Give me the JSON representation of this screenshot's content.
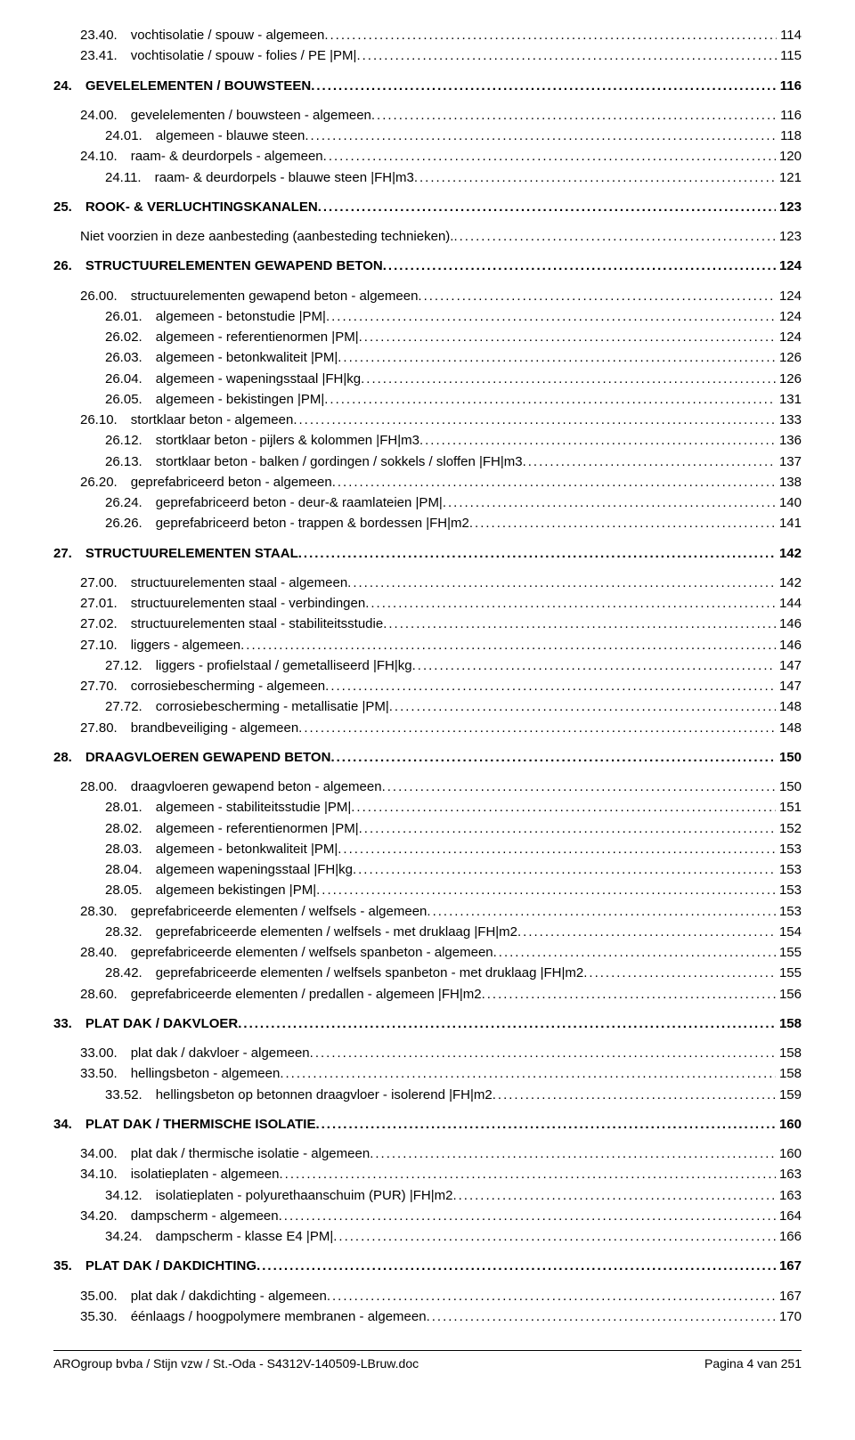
{
  "toc": [
    {
      "ind": 1,
      "bold": false,
      "num": "23.40.",
      "text": "vochtisolatie / spouw - algemeen",
      "page": "114",
      "gapBefore": false
    },
    {
      "ind": 1,
      "bold": false,
      "num": "23.41.",
      "text": "vochtisolatie / spouw - folies / PE |PM|",
      "page": "115",
      "gapBefore": false
    },
    {
      "ind": 0,
      "bold": true,
      "num": "24.",
      "text": "GEVELELEMENTEN / BOUWSTEEN",
      "page": "116",
      "gapBefore": true
    },
    {
      "ind": 1,
      "bold": false,
      "num": "24.00.",
      "text": "gevelelementen / bouwsteen - algemeen",
      "page": "116",
      "gapBefore": true
    },
    {
      "ind": 2,
      "bold": false,
      "num": "24.01.",
      "text": "algemeen - blauwe steen",
      "page": "118",
      "gapBefore": false
    },
    {
      "ind": 1,
      "bold": false,
      "num": "24.10.",
      "text": "raam- & deurdorpels - algemeen",
      "page": "120",
      "gapBefore": false
    },
    {
      "ind": 2,
      "bold": false,
      "num": "24.11.",
      "text": "raam- & deurdorpels - blauwe steen |FH|m3",
      "page": "121",
      "gapBefore": false
    },
    {
      "ind": 0,
      "bold": true,
      "num": "25.",
      "text": "ROOK- & VERLUCHTINGSKANALEN",
      "page": "123",
      "gapBefore": true
    },
    {
      "ind": 1,
      "bold": false,
      "num": "",
      "text": "Niet voorzien in deze aanbesteding (aanbesteding technieken).",
      "page": "123",
      "gapBefore": true
    },
    {
      "ind": 0,
      "bold": true,
      "num": "26.",
      "text": "STRUCTUURELEMENTEN GEWAPEND BETON",
      "page": "124",
      "gapBefore": true
    },
    {
      "ind": 1,
      "bold": false,
      "num": "26.00.",
      "text": "structuurelementen gewapend beton - algemeen",
      "page": "124",
      "gapBefore": true
    },
    {
      "ind": 2,
      "bold": false,
      "num": "26.01.",
      "text": "algemeen - betonstudie |PM|",
      "page": "124",
      "gapBefore": false
    },
    {
      "ind": 2,
      "bold": false,
      "num": "26.02.",
      "text": "algemeen - referentienormen |PM|",
      "page": "124",
      "gapBefore": false
    },
    {
      "ind": 2,
      "bold": false,
      "num": "26.03.",
      "text": "algemeen - betonkwaliteit |PM|",
      "page": "126",
      "gapBefore": false
    },
    {
      "ind": 2,
      "bold": false,
      "num": "26.04.",
      "text": "algemeen - wapeningsstaal |FH|kg",
      "page": "126",
      "gapBefore": false
    },
    {
      "ind": 2,
      "bold": false,
      "num": "26.05.",
      "text": "algemeen - bekistingen |PM|",
      "page": "131",
      "gapBefore": false
    },
    {
      "ind": 1,
      "bold": false,
      "num": "26.10.",
      "text": "stortklaar beton - algemeen",
      "page": "133",
      "gapBefore": false
    },
    {
      "ind": 2,
      "bold": false,
      "num": "26.12.",
      "text": "stortklaar beton - pijlers & kolommen |FH|m3",
      "page": "136",
      "gapBefore": false
    },
    {
      "ind": 2,
      "bold": false,
      "num": "26.13.",
      "text": "stortklaar beton - balken / gordingen / sokkels / sloffen |FH|m3",
      "page": "137",
      "gapBefore": false
    },
    {
      "ind": 1,
      "bold": false,
      "num": "26.20.",
      "text": "geprefabriceerd beton - algemeen",
      "page": "138",
      "gapBefore": false
    },
    {
      "ind": 2,
      "bold": false,
      "num": "26.24.",
      "text": "geprefabriceerd beton - deur-& raamlateien |PM|",
      "page": "140",
      "gapBefore": false
    },
    {
      "ind": 2,
      "bold": false,
      "num": "26.26.",
      "text": "geprefabriceerd beton - trappen & bordessen |FH|m2",
      "page": "141",
      "gapBefore": false
    },
    {
      "ind": 0,
      "bold": true,
      "num": "27.",
      "text": "STRUCTUURELEMENTEN STAAL",
      "page": "142",
      "gapBefore": true
    },
    {
      "ind": 1,
      "bold": false,
      "num": "27.00.",
      "text": "structuurelementen staal - algemeen",
      "page": "142",
      "gapBefore": true
    },
    {
      "ind": 1,
      "bold": false,
      "num": "27.01.",
      "text": "structuurelementen staal - verbindingen",
      "page": "144",
      "gapBefore": false
    },
    {
      "ind": 1,
      "bold": false,
      "num": "27.02.",
      "text": "structuurelementen staal - stabiliteitsstudie",
      "page": "146",
      "gapBefore": false
    },
    {
      "ind": 1,
      "bold": false,
      "num": "27.10.",
      "text": "liggers - algemeen",
      "page": "146",
      "gapBefore": false
    },
    {
      "ind": 2,
      "bold": false,
      "num": "27.12.",
      "text": "liggers - profielstaal / gemetalliseerd |FH|kg",
      "page": "147",
      "gapBefore": false
    },
    {
      "ind": 1,
      "bold": false,
      "num": "27.70.",
      "text": "corrosiebescherming - algemeen",
      "page": "147",
      "gapBefore": false
    },
    {
      "ind": 2,
      "bold": false,
      "num": "27.72.",
      "text": "corrosiebescherming - metallisatie |PM|",
      "page": "148",
      "gapBefore": false
    },
    {
      "ind": 1,
      "bold": false,
      "num": "27.80.",
      "text": "brandbeveiliging - algemeen",
      "page": "148",
      "gapBefore": false
    },
    {
      "ind": 0,
      "bold": true,
      "num": "28.",
      "text": "DRAAGVLOEREN GEWAPEND BETON",
      "page": "150",
      "gapBefore": true
    },
    {
      "ind": 1,
      "bold": false,
      "num": "28.00.",
      "text": "draagvloeren gewapend beton - algemeen",
      "page": "150",
      "gapBefore": true
    },
    {
      "ind": 2,
      "bold": false,
      "num": "28.01.",
      "text": "algemeen - stabiliteitsstudie |PM|",
      "page": "151",
      "gapBefore": false
    },
    {
      "ind": 2,
      "bold": false,
      "num": "28.02.",
      "text": "algemeen - referentienormen |PM|",
      "page": "152",
      "gapBefore": false
    },
    {
      "ind": 2,
      "bold": false,
      "num": "28.03.",
      "text": "algemeen - betonkwaliteit |PM|",
      "page": "153",
      "gapBefore": false
    },
    {
      "ind": 2,
      "bold": false,
      "num": "28.04.",
      "text": "algemeen wapeningsstaal |FH|kg",
      "page": "153",
      "gapBefore": false
    },
    {
      "ind": 2,
      "bold": false,
      "num": "28.05.",
      "text": "algemeen bekistingen |PM|",
      "page": "153",
      "gapBefore": false
    },
    {
      "ind": 1,
      "bold": false,
      "num": "28.30.",
      "text": "geprefabriceerde elementen / welfsels - algemeen",
      "page": "153",
      "gapBefore": false
    },
    {
      "ind": 2,
      "bold": false,
      "num": "28.32.",
      "text": "geprefabriceerde elementen / welfsels - met druklaag |FH|m2",
      "page": "154",
      "gapBefore": false
    },
    {
      "ind": 1,
      "bold": false,
      "num": "28.40.",
      "text": "geprefabriceerde elementen / welfsels spanbeton - algemeen",
      "page": "155",
      "gapBefore": false
    },
    {
      "ind": 2,
      "bold": false,
      "num": "28.42.",
      "text": "geprefabriceerde elementen / welfsels spanbeton - met druklaag |FH|m2",
      "page": "155",
      "gapBefore": false
    },
    {
      "ind": 1,
      "bold": false,
      "num": "28.60.",
      "text": "geprefabriceerde elementen / predallen - algemeen |FH|m2",
      "page": "156",
      "gapBefore": false
    },
    {
      "ind": 0,
      "bold": true,
      "num": "33.",
      "text": "PLAT DAK / DAKVLOER",
      "page": "158",
      "gapBefore": true
    },
    {
      "ind": 1,
      "bold": false,
      "num": "33.00.",
      "text": "plat dak / dakvloer - algemeen",
      "page": "158",
      "gapBefore": true
    },
    {
      "ind": 1,
      "bold": false,
      "num": "33.50.",
      "text": "hellingsbeton - algemeen",
      "page": "158",
      "gapBefore": false
    },
    {
      "ind": 2,
      "bold": false,
      "num": "33.52.",
      "text": "hellingsbeton op betonnen draagvloer - isolerend |FH|m2",
      "page": "159",
      "gapBefore": false
    },
    {
      "ind": 0,
      "bold": true,
      "num": "34.",
      "text": "PLAT DAK / THERMISCHE ISOLATIE",
      "page": "160",
      "gapBefore": true
    },
    {
      "ind": 1,
      "bold": false,
      "num": "34.00.",
      "text": "plat dak / thermische isolatie - algemeen",
      "page": "160",
      "gapBefore": true
    },
    {
      "ind": 1,
      "bold": false,
      "num": "34.10.",
      "text": "isolatieplaten - algemeen",
      "page": "163",
      "gapBefore": false
    },
    {
      "ind": 2,
      "bold": false,
      "num": "34.12.",
      "text": "isolatieplaten - polyurethaanschuim (PUR)  |FH|m2",
      "page": "163",
      "gapBefore": false
    },
    {
      "ind": 1,
      "bold": false,
      "num": "34.20.",
      "text": "dampscherm - algemeen",
      "page": "164",
      "gapBefore": false
    },
    {
      "ind": 2,
      "bold": false,
      "num": "34.24.",
      "text": "dampscherm - klasse E4 |PM|",
      "page": "166",
      "gapBefore": false
    },
    {
      "ind": 0,
      "bold": true,
      "num": "35.",
      "text": "PLAT DAK / DAKDICHTING",
      "page": "167",
      "gapBefore": true
    },
    {
      "ind": 1,
      "bold": false,
      "num": "35.00.",
      "text": "plat dak / dakdichting - algemeen",
      "page": "167",
      "gapBefore": true
    },
    {
      "ind": 1,
      "bold": false,
      "num": "35.30.",
      "text": "éénlaags / hoogpolymere membranen - algemeen",
      "page": "170",
      "gapBefore": false
    }
  ],
  "footer": {
    "left": "AROgroup bvba / Stijn vzw / St.-Oda - S4312V-140509-LBruw.doc",
    "right": "Pagina 4 van 251"
  }
}
